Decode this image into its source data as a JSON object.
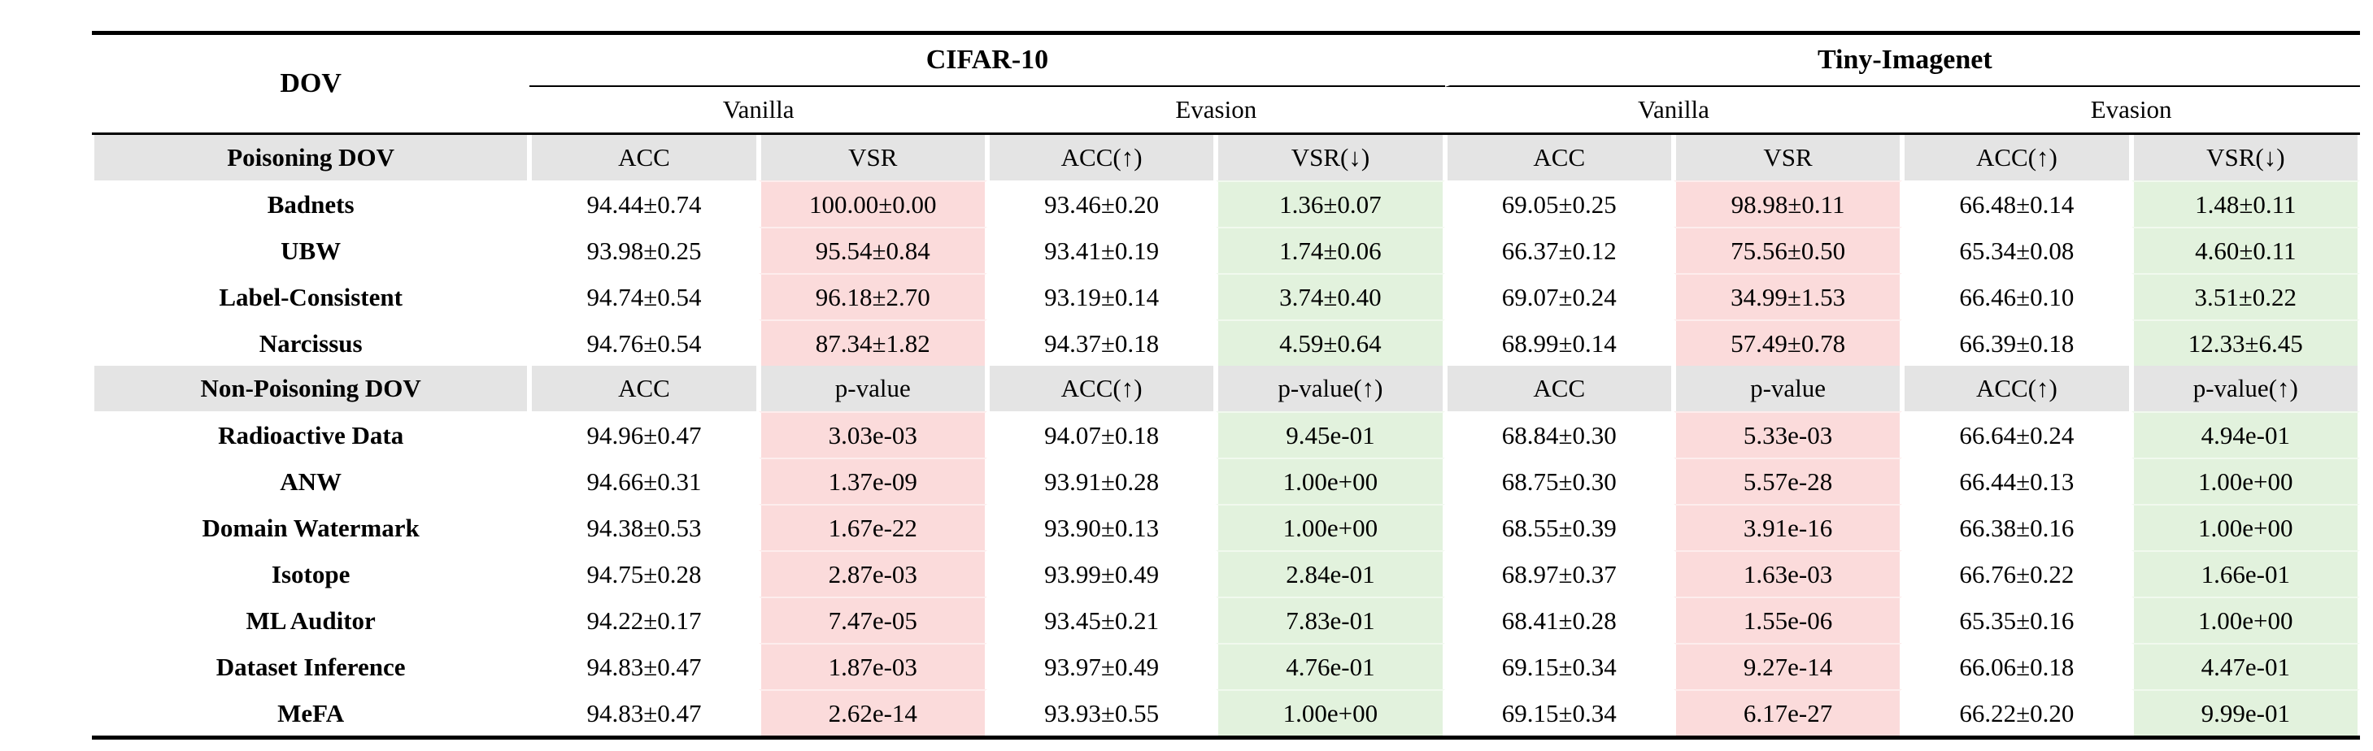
{
  "table": {
    "header1": {
      "dov": "DOV",
      "cifar": "CIFAR-10",
      "tiny": "Tiny-Imagenet"
    },
    "header2": [
      "Vanilla",
      "Evasion",
      "Vanilla",
      "Evasion"
    ],
    "sections": [
      {
        "label": "Poisoning DOV",
        "columns": [
          "ACC",
          "VSR",
          "ACC(↑)",
          "VSR(↓)",
          "ACC",
          "VSR",
          "ACC(↑)",
          "VSR(↓)"
        ],
        "rows": [
          {
            "label": "Badnets",
            "values": [
              "94.44±0.74",
              "100.00±0.00",
              "93.46±0.20",
              "1.36±0.07",
              "69.05±0.25",
              "98.98±0.11",
              "66.48±0.14",
              "1.48±0.11"
            ]
          },
          {
            "label": "UBW",
            "values": [
              "93.98±0.25",
              "95.54±0.84",
              "93.41±0.19",
              "1.74±0.06",
              "66.37±0.12",
              "75.56±0.50",
              "65.34±0.08",
              "4.60±0.11"
            ]
          },
          {
            "label": "Label-Consistent",
            "values": [
              "94.74±0.54",
              "96.18±2.70",
              "93.19±0.14",
              "3.74±0.40",
              "69.07±0.24",
              "34.99±1.53",
              "66.46±0.10",
              "3.51±0.22"
            ]
          },
          {
            "label": "Narcissus",
            "values": [
              "94.76±0.54",
              "87.34±1.82",
              "94.37±0.18",
              "4.59±0.64",
              "68.99±0.14",
              "57.49±0.78",
              "66.39±0.18",
              "12.33±6.45"
            ]
          }
        ]
      },
      {
        "label": "Non-Poisoning DOV",
        "columns": [
          "ACC",
          "p-value",
          "ACC(↑)",
          "p-value(↑)",
          "ACC",
          "p-value",
          "ACC(↑)",
          "p-value(↑)"
        ],
        "rows": [
          {
            "label": "Radioactive Data",
            "values": [
              "94.96±0.47",
              "3.03e-03",
              "94.07±0.18",
              "9.45e-01",
              "68.84±0.30",
              "5.33e-03",
              "66.64±0.24",
              "4.94e-01"
            ]
          },
          {
            "label": "ANW",
            "values": [
              "94.66±0.31",
              "1.37e-09",
              "93.91±0.28",
              "1.00e+00",
              "68.75±0.30",
              "5.57e-28",
              "66.44±0.13",
              "1.00e+00"
            ]
          },
          {
            "label": "Domain Watermark",
            "values": [
              "94.38±0.53",
              "1.67e-22",
              "93.90±0.13",
              "1.00e+00",
              "68.55±0.39",
              "3.91e-16",
              "66.38±0.16",
              "1.00e+00"
            ]
          },
          {
            "label": "Isotope",
            "values": [
              "94.75±0.28",
              "2.87e-03",
              "93.99±0.49",
              "2.84e-01",
              "68.97±0.37",
              "1.63e-03",
              "66.76±0.22",
              "1.66e-01"
            ]
          },
          {
            "label": "ML Auditor",
            "values": [
              "94.22±0.17",
              "7.47e-05",
              "93.45±0.21",
              "7.83e-01",
              "68.41±0.28",
              "1.55e-06",
              "65.35±0.16",
              "1.00e+00"
            ]
          },
          {
            "label": "Dataset Inference",
            "values": [
              "94.83±0.47",
              "1.87e-03",
              "93.97±0.49",
              "4.76e-01",
              "69.15±0.34",
              "9.27e-14",
              "66.06±0.18",
              "4.47e-01"
            ]
          },
          {
            "label": "MeFA",
            "values": [
              "94.83±0.47",
              "2.62e-14",
              "93.93±0.55",
              "1.00e+00",
              "69.15±0.34",
              "6.17e-27",
              "66.22±0.20",
              "9.99e-01"
            ]
          }
        ]
      }
    ],
    "colors": {
      "pink_highlight": "#fbdbdb",
      "green_highlight": "#e2f2dd",
      "header_gray": "#e4e4e4",
      "rule_black": "#000000"
    },
    "arrow_up": "↑",
    "arrow_down": "↓"
  }
}
